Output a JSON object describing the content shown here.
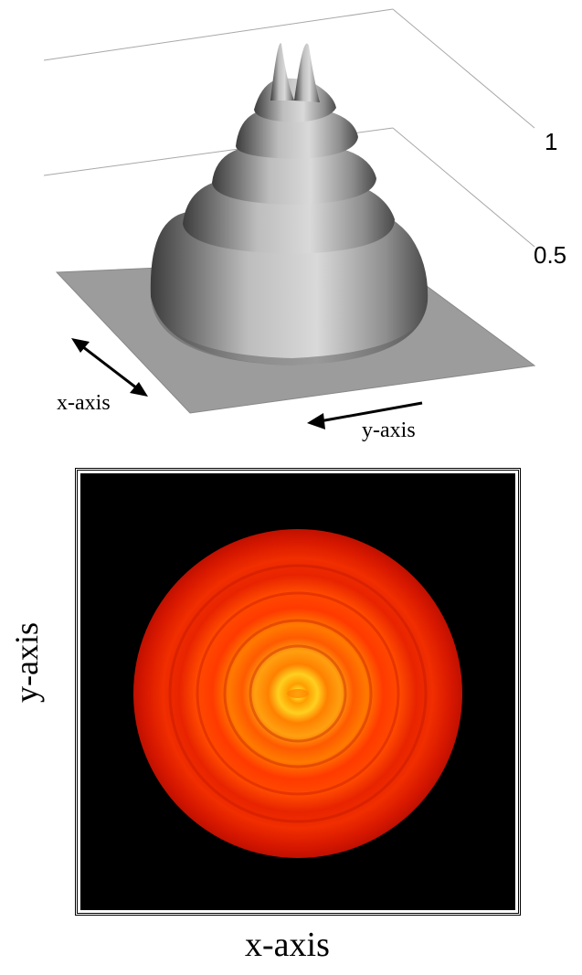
{
  "surface_plot": {
    "z_tick_labels": [
      "1",
      "0.5"
    ],
    "x_axis_label": "x-axis",
    "y_axis_label": "y-axis"
  },
  "heatmap": {
    "x_axis_label": "x-axis",
    "y_axis_label": "y-axis",
    "colors": {
      "background": "#000000",
      "outer": "#d01000",
      "mid": "#ff3a00",
      "inner": "#ff8a00",
      "peak": "#ffff40"
    }
  },
  "chart_data": [
    {
      "type": "surface",
      "zticks": [
        0.5,
        1
      ],
      "xlabel": "x-axis",
      "ylabel": "y-axis",
      "grid": true
    },
    {
      "type": "heatmap",
      "xlabel": "x-axis",
      "ylabel": "y-axis"
    }
  ]
}
